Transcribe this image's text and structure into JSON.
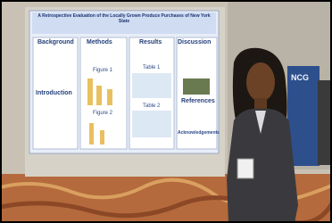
{
  "poster": {
    "title": "A Retrospective Evaluation of the Locally Grown Produce Purchases of New York State",
    "sections": [
      "Background",
      "Methods",
      "Results",
      "Discussion",
      "Introduction",
      "References",
      "Acknowledgements"
    ],
    "figures": [
      "Figure 1",
      "Figure 2"
    ],
    "tables": [
      "Table 1",
      "Table 2"
    ]
  },
  "banner": "NCG"
}
